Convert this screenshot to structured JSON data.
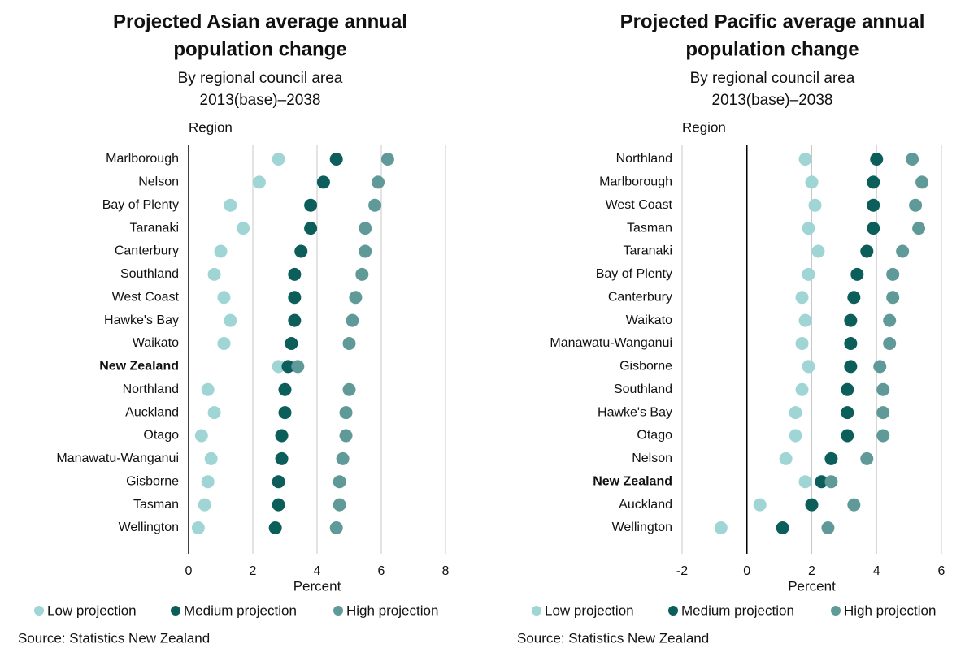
{
  "chart_data": [
    {
      "type": "dot",
      "title": [
        "Projected Asian average annual",
        "population change"
      ],
      "subtitle": [
        "By regional council area",
        "2013(base)–2038"
      ],
      "y_label": "Region",
      "x_label": "Percent",
      "source": "Source: Statistics New Zealand",
      "highlight": "New Zealand",
      "categories": [
        "Marlborough",
        "Nelson",
        "Bay of Plenty",
        "Taranaki",
        "Canterbury",
        "Southland",
        "West Coast",
        "Hawke's Bay",
        "Waikato",
        "New Zealand",
        "Northland",
        "Auckland",
        "Otago",
        "Manawatu-Wanganui",
        "Gisborne",
        "Tasman",
        "Wellington"
      ],
      "series": [
        {
          "name": "Low projection",
          "color": "#9fd5d4",
          "values": [
            2.8,
            2.2,
            1.3,
            1.7,
            1.0,
            0.8,
            1.1,
            1.3,
            1.1,
            2.8,
            0.6,
            0.8,
            0.4,
            0.7,
            0.6,
            0.5,
            0.3
          ]
        },
        {
          "name": "Medium projection",
          "color": "#0b5e5a",
          "values": [
            4.6,
            4.2,
            3.8,
            3.8,
            3.5,
            3.3,
            3.3,
            3.3,
            3.2,
            3.1,
            3.0,
            3.0,
            2.9,
            2.9,
            2.8,
            2.8,
            2.7
          ]
        },
        {
          "name": "High projection",
          "color": "#5f9a98",
          "values": [
            6.2,
            5.9,
            5.8,
            5.5,
            5.5,
            5.4,
            5.2,
            5.1,
            5.0,
            3.4,
            5.0,
            4.9,
            4.9,
            4.8,
            4.7,
            4.7,
            4.6
          ]
        }
      ],
      "xlim": [
        0,
        8
      ],
      "xticks": [
        0,
        2,
        4,
        6,
        8
      ],
      "grid": true
    },
    {
      "type": "dot",
      "title": [
        "Projected Pacific average annual",
        "population change"
      ],
      "subtitle": [
        "By regional council area",
        "2013(base)–2038"
      ],
      "y_label": "Region",
      "x_label": "Percent",
      "source": "Source: Statistics New Zealand",
      "highlight": "New Zealand",
      "categories": [
        "Northland",
        "Marlborough",
        "West Coast",
        "Tasman",
        "Taranaki",
        "Bay of Plenty",
        "Canterbury",
        "Waikato",
        "Manawatu-Wanganui",
        "Gisborne",
        "Southland",
        "Hawke's Bay",
        "Otago",
        "Nelson",
        "New Zealand",
        "Auckland",
        "Wellington"
      ],
      "series": [
        {
          "name": "Low projection",
          "color": "#9fd5d4",
          "values": [
            1.8,
            2.0,
            2.1,
            1.9,
            2.2,
            1.9,
            1.7,
            1.8,
            1.7,
            1.9,
            1.7,
            1.5,
            1.5,
            1.2,
            1.8,
            0.4,
            -0.8
          ]
        },
        {
          "name": "Medium projection",
          "color": "#0b5e5a",
          "values": [
            4.0,
            3.9,
            3.9,
            3.9,
            3.7,
            3.4,
            3.3,
            3.2,
            3.2,
            3.2,
            3.1,
            3.1,
            3.1,
            2.6,
            2.3,
            2.0,
            1.1
          ]
        },
        {
          "name": "High projection",
          "color": "#5f9a98",
          "values": [
            5.1,
            5.4,
            5.2,
            5.3,
            4.8,
            4.5,
            4.5,
            4.4,
            4.4,
            4.1,
            4.2,
            4.2,
            4.2,
            3.7,
            2.6,
            3.3,
            2.5
          ]
        }
      ],
      "xlim": [
        -2,
        6
      ],
      "xticks": [
        -2,
        0,
        2,
        4,
        6
      ],
      "grid": true
    }
  ]
}
